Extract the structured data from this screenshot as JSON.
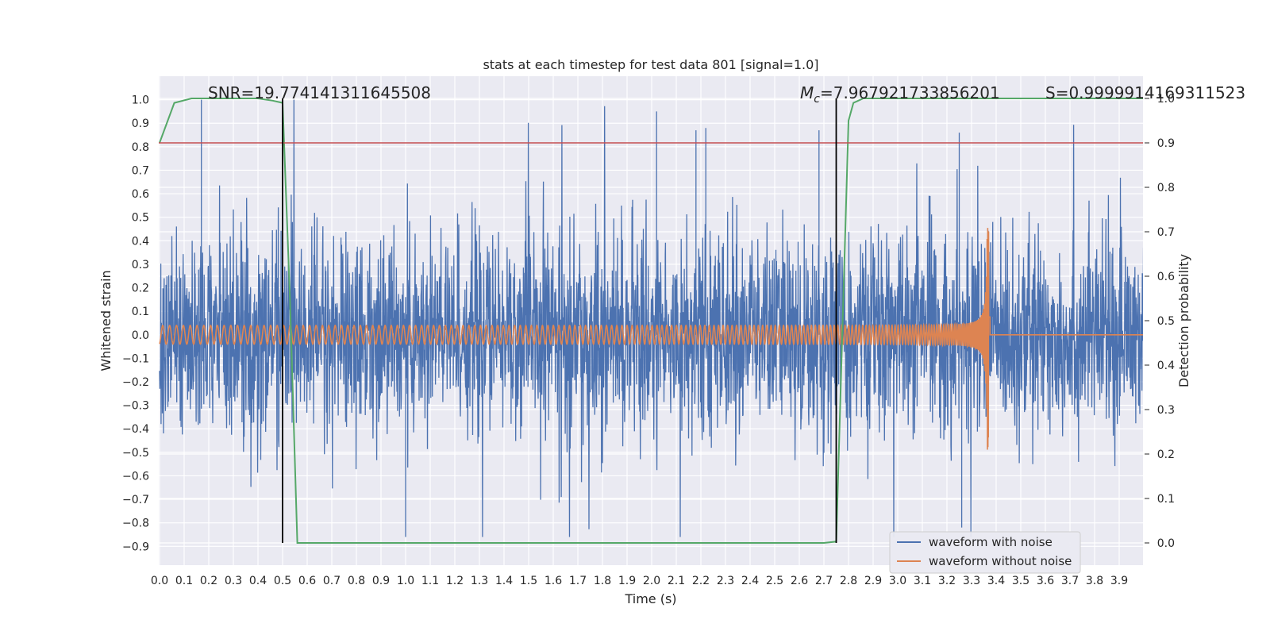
{
  "chart_data": {
    "type": "line",
    "title": "stats at each timestep for test data 801 [signal=1.0]",
    "xlabel": "Time (s)",
    "ylabel": "Whitened strain",
    "y2label": "Detection probability",
    "xlim": [
      0.0,
      4.0
    ],
    "ylim": [
      -0.98,
      1.1
    ],
    "y2lim": [
      -0.05,
      1.05
    ],
    "x_ticks": [
      "0.0",
      "0.1",
      "0.2",
      "0.3",
      "0.4",
      "0.5",
      "0.6",
      "0.7",
      "0.8",
      "0.9",
      "1.0",
      "1.1",
      "1.2",
      "1.3",
      "1.4",
      "1.5",
      "1.6",
      "1.7",
      "1.8",
      "1.9",
      "2.0",
      "2.1",
      "2.2",
      "2.3",
      "2.4",
      "2.5",
      "2.6",
      "2.7",
      "2.8",
      "2.9",
      "3.0",
      "3.1",
      "3.2",
      "3.3",
      "3.4",
      "3.5",
      "3.6",
      "3.7",
      "3.8",
      "3.9"
    ],
    "y_ticks": [
      "1.0",
      "0.9",
      "0.8",
      "0.7",
      "0.6",
      "0.5",
      "0.4",
      "0.3",
      "0.2",
      "0.1",
      "0.0",
      "−0.1",
      "−0.2",
      "−0.3",
      "−0.4",
      "−0.5",
      "−0.6",
      "−0.7",
      "−0.8",
      "−0.9"
    ],
    "y2_ticks": [
      "1.0",
      "0.9",
      "0.8",
      "0.7",
      "0.6",
      "0.5",
      "0.4",
      "0.3",
      "0.2",
      "0.1",
      "0.0"
    ],
    "annotations": {
      "snr": "SNR=19.774141311645508",
      "mc_symbol": "M",
      "mc_sub": "c",
      "mc_value": "=7.967921733856201",
      "s": "S=0.9999914169311523"
    },
    "legend": [
      "waveform with noise",
      "waveform without noise"
    ],
    "legend_position": "lower-right",
    "threshold_y2": 0.9,
    "vertical_lines_x": [
      0.5,
      2.75
    ],
    "series": [
      {
        "name": "waveform with noise",
        "color": "#4c72b0",
        "kind": "noisy-strain",
        "x_range": [
          0.0,
          4.0
        ],
        "amplitude_range": [
          -0.86,
          1.0
        ]
      },
      {
        "name": "waveform without noise",
        "color": "#dd8452",
        "kind": "chirp",
        "x_range": [
          0.0,
          4.0
        ],
        "merger_time": 3.37,
        "peak_amplitude": 0.55,
        "base_amplitude": 0.04
      },
      {
        "name": "detection probability",
        "color": "#55a868",
        "axis": "right",
        "x": [
          0.0,
          0.06,
          0.13,
          0.2,
          0.3,
          0.4,
          0.46,
          0.5,
          0.53,
          0.56,
          0.6,
          1.0,
          1.5,
          2.0,
          2.5,
          2.7,
          2.75,
          2.8,
          2.82,
          2.86,
          2.9,
          3.2,
          3.6,
          4.0
        ],
        "y": [
          0.9,
          0.99,
          1.0,
          1.0,
          1.0,
          1.0,
          0.995,
          0.99,
          0.55,
          0.0,
          0.0,
          0.0,
          0.0,
          0.0,
          0.0,
          0.0,
          0.003,
          0.95,
          0.99,
          1.0,
          1.0,
          1.0,
          1.0,
          1.0
        ]
      }
    ]
  }
}
